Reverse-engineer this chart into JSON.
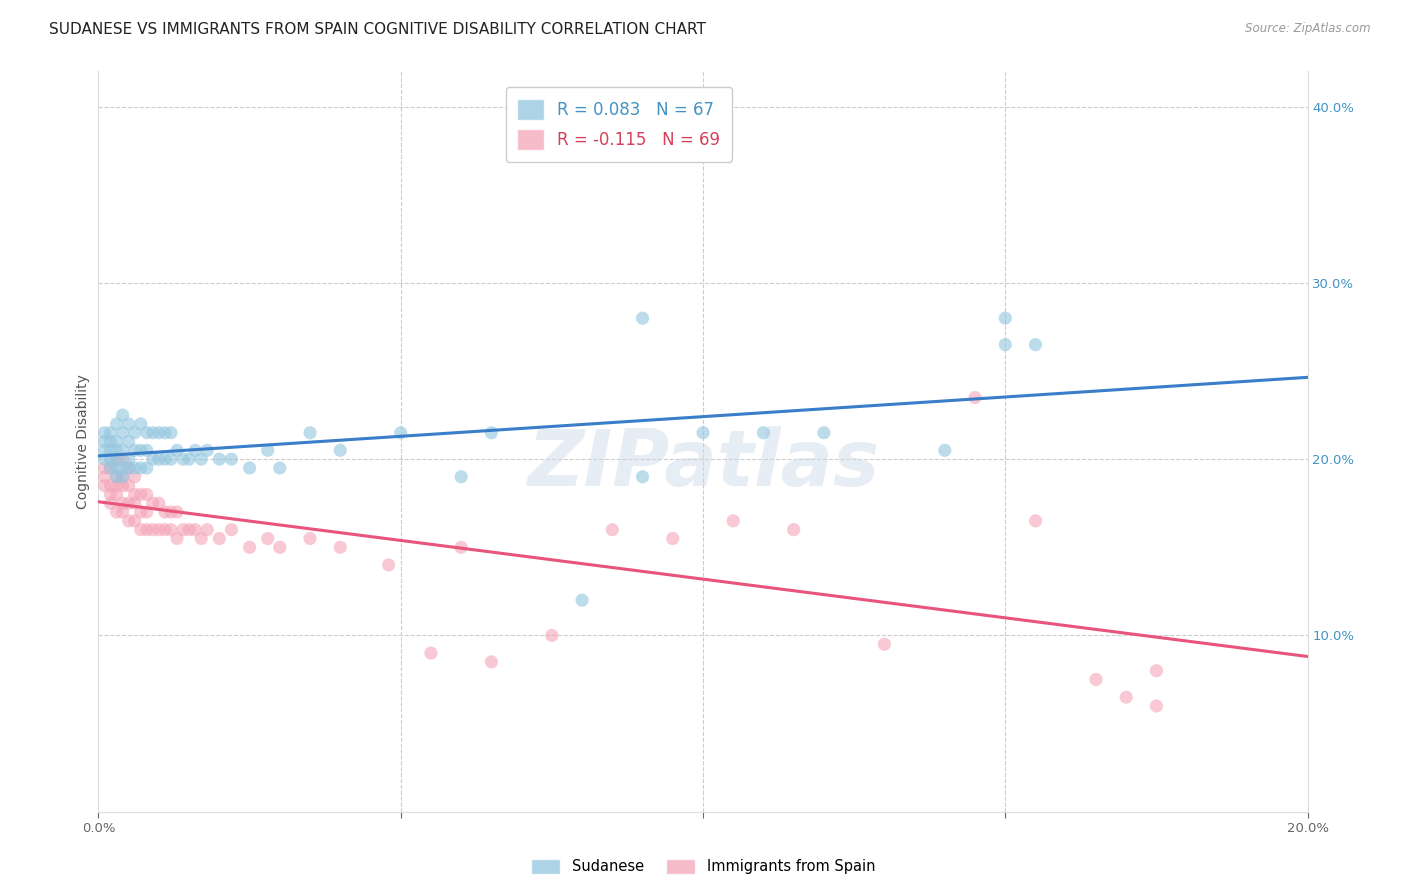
{
  "title": "SUDANESE VS IMMIGRANTS FROM SPAIN COGNITIVE DISABILITY CORRELATION CHART",
  "source": "Source: ZipAtlas.com",
  "ylabel": "Cognitive Disability",
  "x_min": 0.0,
  "x_max": 0.2,
  "y_min": 0.0,
  "y_max": 0.42,
  "color_blue": "#92c5de",
  "color_pink": "#f4a4b8",
  "color_blue_line": "#3a7dc9",
  "color_pink_line": "#e8547a",
  "color_blue_text": "#4393c3",
  "color_pink_text": "#d6405a",
  "watermark": "ZIPatlas",
  "legend_r1": "R = 0.083",
  "legend_n1": "N = 67",
  "legend_r2": "R = -0.115",
  "legend_n2": "N = 69",
  "sud_x": [
    0.001,
    0.001,
    0.001,
    0.001,
    0.002,
    0.002,
    0.002,
    0.002,
    0.002,
    0.003,
    0.003,
    0.003,
    0.003,
    0.003,
    0.003,
    0.004,
    0.004,
    0.004,
    0.004,
    0.004,
    0.005,
    0.005,
    0.005,
    0.005,
    0.006,
    0.006,
    0.006,
    0.007,
    0.007,
    0.007,
    0.008,
    0.008,
    0.008,
    0.009,
    0.009,
    0.01,
    0.01,
    0.011,
    0.011,
    0.012,
    0.012,
    0.013,
    0.014,
    0.015,
    0.016,
    0.017,
    0.018,
    0.02,
    0.022,
    0.025,
    0.028,
    0.03,
    0.035,
    0.04,
    0.05,
    0.06,
    0.065,
    0.08,
    0.09,
    0.1,
    0.11,
    0.12,
    0.14,
    0.15,
    0.155,
    0.15,
    0.09
  ],
  "sud_y": [
    0.2,
    0.205,
    0.21,
    0.215,
    0.195,
    0.2,
    0.205,
    0.21,
    0.215,
    0.19,
    0.195,
    0.2,
    0.205,
    0.21,
    0.22,
    0.19,
    0.195,
    0.205,
    0.215,
    0.225,
    0.195,
    0.2,
    0.21,
    0.22,
    0.195,
    0.205,
    0.215,
    0.195,
    0.205,
    0.22,
    0.195,
    0.205,
    0.215,
    0.2,
    0.215,
    0.2,
    0.215,
    0.2,
    0.215,
    0.2,
    0.215,
    0.205,
    0.2,
    0.2,
    0.205,
    0.2,
    0.205,
    0.2,
    0.2,
    0.195,
    0.205,
    0.195,
    0.215,
    0.205,
    0.215,
    0.19,
    0.215,
    0.12,
    0.19,
    0.215,
    0.215,
    0.215,
    0.205,
    0.265,
    0.265,
    0.28,
    0.28
  ],
  "spain_x": [
    0.001,
    0.001,
    0.001,
    0.002,
    0.002,
    0.002,
    0.002,
    0.003,
    0.003,
    0.003,
    0.003,
    0.003,
    0.004,
    0.004,
    0.004,
    0.004,
    0.004,
    0.005,
    0.005,
    0.005,
    0.005,
    0.006,
    0.006,
    0.006,
    0.006,
    0.007,
    0.007,
    0.007,
    0.008,
    0.008,
    0.008,
    0.009,
    0.009,
    0.01,
    0.01,
    0.011,
    0.011,
    0.012,
    0.012,
    0.013,
    0.013,
    0.014,
    0.015,
    0.016,
    0.017,
    0.018,
    0.02,
    0.022,
    0.025,
    0.028,
    0.03,
    0.035,
    0.04,
    0.048,
    0.055,
    0.06,
    0.065,
    0.075,
    0.085,
    0.095,
    0.105,
    0.115,
    0.13,
    0.145,
    0.155,
    0.165,
    0.17,
    0.175,
    0.175
  ],
  "spain_y": [
    0.185,
    0.19,
    0.195,
    0.175,
    0.18,
    0.185,
    0.195,
    0.17,
    0.18,
    0.185,
    0.19,
    0.2,
    0.17,
    0.175,
    0.185,
    0.19,
    0.2,
    0.165,
    0.175,
    0.185,
    0.195,
    0.165,
    0.175,
    0.18,
    0.19,
    0.16,
    0.17,
    0.18,
    0.16,
    0.17,
    0.18,
    0.16,
    0.175,
    0.16,
    0.175,
    0.16,
    0.17,
    0.16,
    0.17,
    0.155,
    0.17,
    0.16,
    0.16,
    0.16,
    0.155,
    0.16,
    0.155,
    0.16,
    0.15,
    0.155,
    0.15,
    0.155,
    0.15,
    0.14,
    0.09,
    0.15,
    0.085,
    0.1,
    0.16,
    0.155,
    0.165,
    0.16,
    0.095,
    0.235,
    0.165,
    0.075,
    0.065,
    0.06,
    0.08
  ],
  "title_fontsize": 11,
  "axis_label_fontsize": 10,
  "tick_fontsize": 9.5
}
